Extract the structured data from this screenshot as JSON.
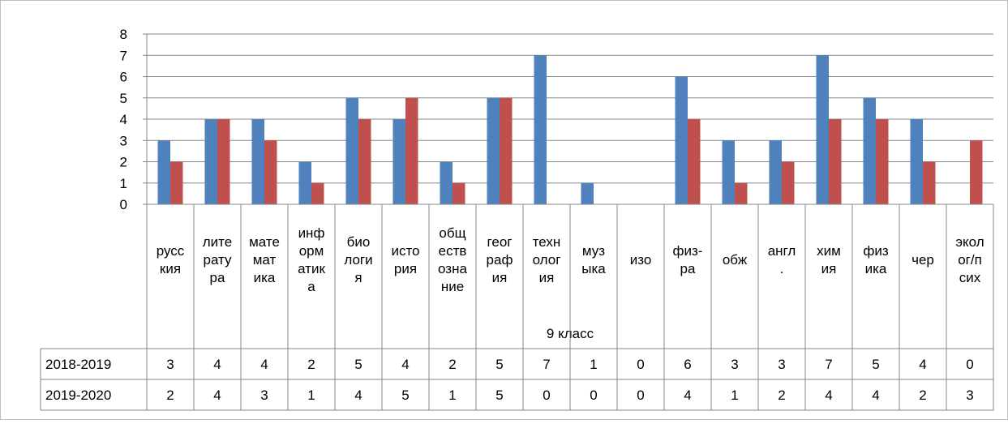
{
  "chart_data": {
    "type": "bar",
    "group_label": "9 класс",
    "categories": [
      [
        "русс",
        "кия"
      ],
      [
        "лите",
        "рату",
        "ра"
      ],
      [
        "мате",
        "мат",
        "ика"
      ],
      [
        "инф",
        "орм",
        "атик",
        "а"
      ],
      [
        "био",
        "логи",
        "я"
      ],
      [
        "исто",
        "рия"
      ],
      [
        "общ",
        "еств",
        "озна",
        "ние"
      ],
      [
        "геог",
        "раф",
        "ия"
      ],
      [
        "техн",
        "олог",
        "ия"
      ],
      [
        "муз",
        "ыка"
      ],
      [
        "изо"
      ],
      [
        "физ-",
        "ра"
      ],
      [
        "обж"
      ],
      [
        "англ",
        "."
      ],
      [
        "хим",
        "ия"
      ],
      [
        "физ",
        "ика"
      ],
      [
        "чер"
      ],
      [
        "экол",
        "ог/п",
        "сих"
      ]
    ],
    "series": [
      {
        "name": "2018-2019",
        "color": "#4F81BD",
        "values": [
          3,
          4,
          4,
          2,
          5,
          4,
          2,
          5,
          7,
          1,
          0,
          6,
          3,
          3,
          7,
          5,
          4,
          0
        ]
      },
      {
        "name": "2019-2020",
        "color": "#C0504D",
        "values": [
          2,
          4,
          3,
          1,
          4,
          5,
          1,
          5,
          0,
          0,
          0,
          4,
          1,
          2,
          4,
          4,
          2,
          3
        ]
      }
    ],
    "ylim": [
      0,
      8
    ],
    "y_ticks": [
      0,
      1,
      2,
      3,
      4,
      5,
      6,
      7,
      8
    ],
    "grid": true,
    "legend": "data table below chart"
  }
}
